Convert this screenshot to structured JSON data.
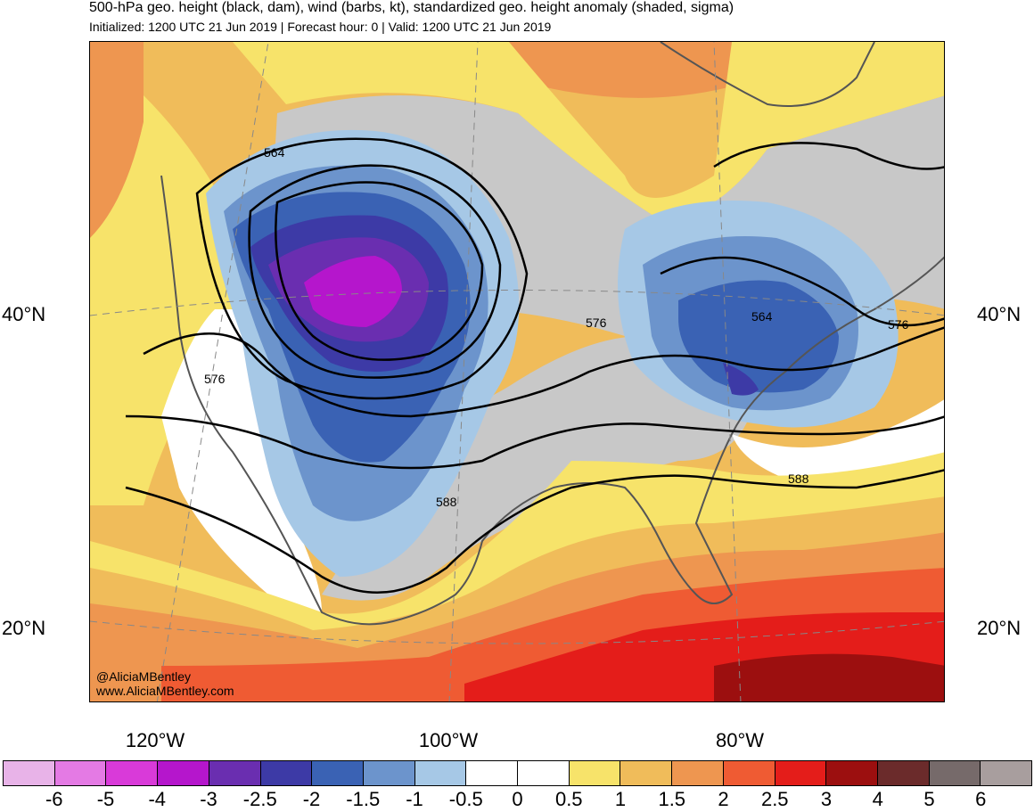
{
  "header": {
    "title": "500-hPa geo. height (black, dam), wind (barbs, kt), standardized geo. height anomaly (shaded, sigma)",
    "subtitle": "Initialized: 1200 UTC 21 Jun 2019 | Forecast hour: 0 | Valid: 1200 UTC 21 Jun 2019"
  },
  "map": {
    "lat_labels": [
      "40°N",
      "20°N"
    ],
    "lon_labels": [
      "120°W",
      "100°W",
      "80°W"
    ],
    "contour_labels": [
      "564",
      "576",
      "588",
      "564",
      "576",
      "576",
      "588"
    ],
    "credit": [
      "@AliciaMBentley",
      "www.AliciaMBentley.com"
    ],
    "colors": {
      "land_gray": "#c8c8c8",
      "coastline": "#555555",
      "contour": "#000000"
    }
  },
  "colorbar": {
    "labels": [
      "-6",
      "-5",
      "-4",
      "-3",
      "-2.5",
      "-2",
      "-1.5",
      "-1",
      "-0.5",
      "0",
      "0.5",
      "1",
      "1.5",
      "2",
      "2.5",
      "3",
      "4",
      "5",
      "6"
    ],
    "colors": [
      "#e8b3e8",
      "#e47ae4",
      "#d93ad9",
      "#b516cc",
      "#6a2eb0",
      "#3d3aa6",
      "#3a62b4",
      "#6c94cc",
      "#a6c8e6",
      "#ffffff",
      "#ffffff",
      "#f7e36a",
      "#f0bc5a",
      "#ee9650",
      "#ef5b33",
      "#e41d1a",
      "#9c0f0f",
      "#6b2b2b",
      "#766a6a",
      "#a89e9e"
    ]
  }
}
